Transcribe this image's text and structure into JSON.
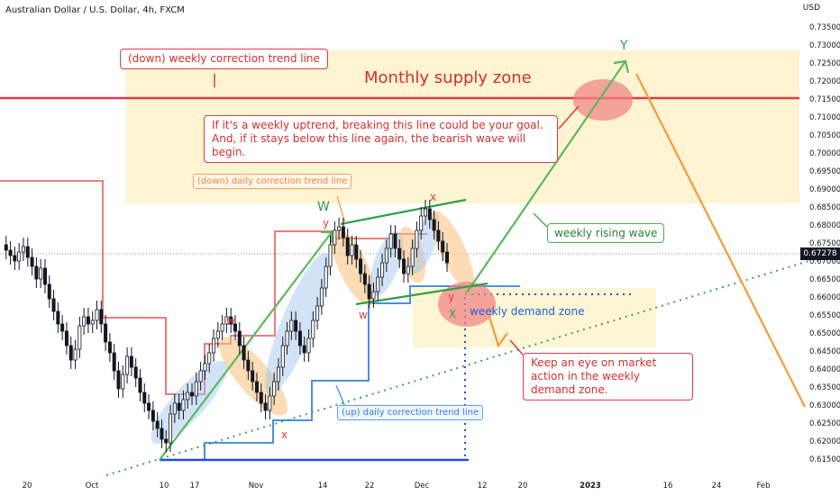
{
  "header": {
    "title": "Australian Dollar / U.S. Dollar, 4h, FXCM",
    "currency": "USD"
  },
  "colors": {
    "supply_zone": "#fdf0c2",
    "demand_zone": "#fdf3c8",
    "resistance_line": "#e0394a",
    "up_trend": "#5cb85c",
    "down_trend": "#f39c3a",
    "support": "#1f4ed8",
    "candle": "#131722",
    "down_box": "#f07b7b",
    "up_box": "#4a90e2"
  },
  "current_price": "0.67278",
  "annotations": {
    "weekly_down_line": "(down) weekly correction trend line",
    "supply_zone": "Monthly supply zone",
    "goal_note": "If it's a weekly uptrend, breaking this line could be your goal. And, if it stays below this line again, the bearish wave will begin.",
    "daily_down": "(down) daily correction trend line",
    "weekly_rising": "weekly rising wave",
    "demand_zone": "weekly demand zone",
    "keep_eye": "Keep an eye on market action in the weekly demand zone.",
    "daily_up": "(up) daily correction trend line"
  },
  "wave_labels": {
    "W": "W",
    "Y_big": "Y",
    "w_small": "w",
    "x_small_1": "x",
    "y_small_1": "y",
    "w_small_2": "w",
    "x_small_2": "x",
    "y_small_2": "y",
    "X": "X"
  },
  "chart_data": {
    "type": "line",
    "title": "Australian Dollar / U.S. Dollar, 4h, FXCM",
    "xlabel": "",
    "ylabel": "USD",
    "ylim": [
      0.6125,
      0.7375
    ],
    "y_ticks": [
      "0.73500",
      "0.73000",
      "0.72500",
      "0.72000",
      "0.71500",
      "0.71000",
      "0.70500",
      "0.70000",
      "0.69500",
      "0.69000",
      "0.68500",
      "0.68000",
      "0.67500",
      "0.67000",
      "0.66500",
      "0.66000",
      "0.65500",
      "0.65000",
      "0.64500",
      "0.64000",
      "0.63500",
      "0.63000",
      "0.62500",
      "0.62000",
      "0.61500"
    ],
    "x_ticks": [
      "20",
      "Oct",
      "10",
      "17",
      "Nov",
      "14",
      "22",
      "Dec",
      "12",
      "20",
      "2023",
      "16",
      "24",
      "Feb"
    ],
    "series": [
      {
        "values": [
          0.6745,
          0.673,
          0.6715,
          0.67,
          0.6725,
          0.674,
          0.671,
          0.6685,
          0.665,
          0.668,
          0.6635,
          0.6595,
          0.656,
          0.6525,
          0.6505,
          0.6465,
          0.6425,
          0.6455,
          0.652,
          0.6545,
          0.6525,
          0.6535,
          0.6565,
          0.6525,
          0.6475,
          0.6445,
          0.6395,
          0.6345,
          0.6385,
          0.6435,
          0.6405,
          0.6375,
          0.6335,
          0.6305,
          0.6285,
          0.6255,
          0.6235,
          0.6205,
          0.6195,
          0.6275,
          0.6305,
          0.6285,
          0.6315,
          0.6335,
          0.6325,
          0.6365,
          0.6395,
          0.6415,
          0.6445,
          0.6485,
          0.6505,
          0.6525,
          0.6545,
          0.6525,
          0.6505,
          0.6465,
          0.6425,
          0.6395,
          0.6365,
          0.6335,
          0.6305,
          0.6285,
          0.6325,
          0.6365,
          0.6405,
          0.6465,
          0.6505,
          0.6535,
          0.6505,
          0.6465,
          0.6445,
          0.6485,
          0.6535,
          0.6575,
          0.6625,
          0.6685,
          0.6745,
          0.6785,
          0.6795,
          0.6765,
          0.6715,
          0.6745,
          0.6705,
          0.6665,
          0.6635,
          0.6595,
          0.6615,
          0.6655,
          0.6695,
          0.6735,
          0.6775,
          0.6735,
          0.6705,
          0.6665,
          0.6685,
          0.6735,
          0.6785,
          0.6825,
          0.6845,
          0.6815,
          0.6785,
          0.6755,
          0.6725,
          0.6695
        ]
      }
    ]
  }
}
